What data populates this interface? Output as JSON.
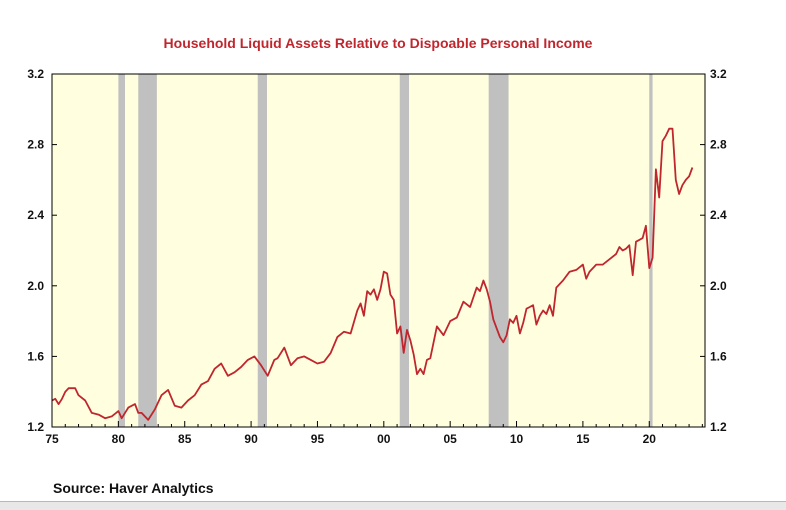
{
  "source": "Source:  Haver Analytics",
  "chart_data": {
    "type": "line",
    "title": "Household Liquid Assets Relative to Dispoable Personal Income",
    "xlabel": "",
    "ylabel": "",
    "xlim": [
      1975,
      2024.2
    ],
    "ylim": [
      1.2,
      3.2
    ],
    "y_ticks": [
      1.2,
      1.6,
      2.0,
      2.4,
      2.8,
      3.2
    ],
    "y_tick_labels": [
      "1.2",
      "1.6",
      "2.0",
      "2.4",
      "2.8",
      "3.2"
    ],
    "x_ticks": [
      1975,
      1980,
      1985,
      1990,
      1995,
      2000,
      2005,
      2010,
      2015,
      2020
    ],
    "x_tick_labels": [
      "75",
      "80",
      "85",
      "90",
      "95",
      "00",
      "05",
      "10",
      "15",
      "20"
    ],
    "grid": false,
    "right_axis": true,
    "plot_background": "#ffffe0",
    "recession_color": "#c0c0c0",
    "line_color": "#c0262d",
    "title_color": "#c0262d",
    "recessions": [
      [
        1980.0,
        1980.5
      ],
      [
        1981.5,
        1982.9
      ],
      [
        1990.5,
        1991.2
      ],
      [
        2001.2,
        2001.9
      ],
      [
        2007.9,
        2009.4
      ],
      [
        2020.0,
        2020.25
      ]
    ],
    "series": [
      {
        "x": [
          1975.0,
          1975.25,
          1975.5,
          1975.75,
          1976.0,
          1976.25,
          1976.5,
          1976.75,
          1977.0,
          1977.5,
          1978.0,
          1978.5,
          1979.0,
          1979.5,
          1980.0,
          1980.25,
          1980.75,
          1981.25,
          1981.5,
          1981.75,
          1982.25,
          1982.75,
          1983.25,
          1983.75,
          1984.25,
          1984.75,
          1985.25,
          1985.75,
          1986.25,
          1986.75,
          1987.25,
          1987.75,
          1988.25,
          1988.75,
          1989.25,
          1989.75,
          1990.25,
          1990.75,
          1991.25,
          1991.75,
          1992.0,
          1992.5,
          1993.0,
          1993.5,
          1994.0,
          1994.5,
          1995.0,
          1995.5,
          1996.0,
          1996.5,
          1997.0,
          1997.5,
          1998.0,
          1998.25,
          1998.5,
          1998.75,
          1999.0,
          1999.25,
          1999.5,
          1999.75,
          2000.0,
          2000.25,
          2000.5,
          2000.75,
          2001.0,
          2001.25,
          2001.5,
          2001.75,
          2002.0,
          2002.25,
          2002.5,
          2002.75,
          2003.0,
          2003.25,
          2003.5,
          2003.75,
          2004.0,
          2004.5,
          2005.0,
          2005.5,
          2006.0,
          2006.5,
          2007.0,
          2007.25,
          2007.5,
          2007.75,
          2008.0,
          2008.25,
          2008.5,
          2008.75,
          2009.0,
          2009.25,
          2009.5,
          2009.75,
          2010.0,
          2010.25,
          2010.5,
          2010.75,
          2011.0,
          2011.25,
          2011.5,
          2011.75,
          2012.0,
          2012.25,
          2012.5,
          2012.75,
          2013.0,
          2013.5,
          2014.0,
          2014.5,
          2015.0,
          2015.25,
          2015.5,
          2016.0,
          2016.5,
          2017.0,
          2017.5,
          2017.75,
          2018.0,
          2018.25,
          2018.5,
          2018.75,
          2019.0,
          2019.25,
          2019.5,
          2019.75,
          2020.0,
          2020.25,
          2020.5,
          2020.75,
          2021.0,
          2021.25,
          2021.5,
          2021.75,
          2022.0,
          2022.25,
          2022.5,
          2022.75,
          2023.0,
          2023.25
        ],
        "values": [
          1.35,
          1.36,
          1.33,
          1.36,
          1.4,
          1.42,
          1.42,
          1.42,
          1.38,
          1.35,
          1.28,
          1.27,
          1.25,
          1.26,
          1.29,
          1.25,
          1.31,
          1.33,
          1.28,
          1.28,
          1.24,
          1.3,
          1.38,
          1.41,
          1.32,
          1.31,
          1.35,
          1.38,
          1.44,
          1.46,
          1.53,
          1.56,
          1.49,
          1.51,
          1.54,
          1.58,
          1.6,
          1.55,
          1.49,
          1.58,
          1.59,
          1.65,
          1.55,
          1.59,
          1.6,
          1.58,
          1.56,
          1.57,
          1.62,
          1.71,
          1.74,
          1.73,
          1.86,
          1.9,
          1.83,
          1.97,
          1.95,
          1.98,
          1.92,
          1.98,
          2.08,
          2.07,
          1.95,
          1.92,
          1.73,
          1.77,
          1.62,
          1.75,
          1.69,
          1.61,
          1.5,
          1.53,
          1.5,
          1.58,
          1.59,
          1.68,
          1.77,
          1.72,
          1.8,
          1.82,
          1.91,
          1.88,
          1.99,
          1.97,
          2.03,
          1.98,
          1.91,
          1.81,
          1.76,
          1.71,
          1.68,
          1.72,
          1.81,
          1.79,
          1.83,
          1.73,
          1.79,
          1.87,
          1.88,
          1.89,
          1.78,
          1.83,
          1.86,
          1.84,
          1.89,
          1.83,
          1.99,
          2.03,
          2.08,
          2.09,
          2.12,
          2.04,
          2.08,
          2.12,
          2.12,
          2.15,
          2.18,
          2.22,
          2.2,
          2.21,
          2.23,
          2.06,
          2.25,
          2.26,
          2.27,
          2.34,
          2.1,
          2.16,
          2.66,
          2.5,
          2.82,
          2.85,
          2.89,
          2.89,
          2.6,
          2.52,
          2.57,
          2.6,
          2.62,
          2.67
        ]
      }
    ]
  }
}
